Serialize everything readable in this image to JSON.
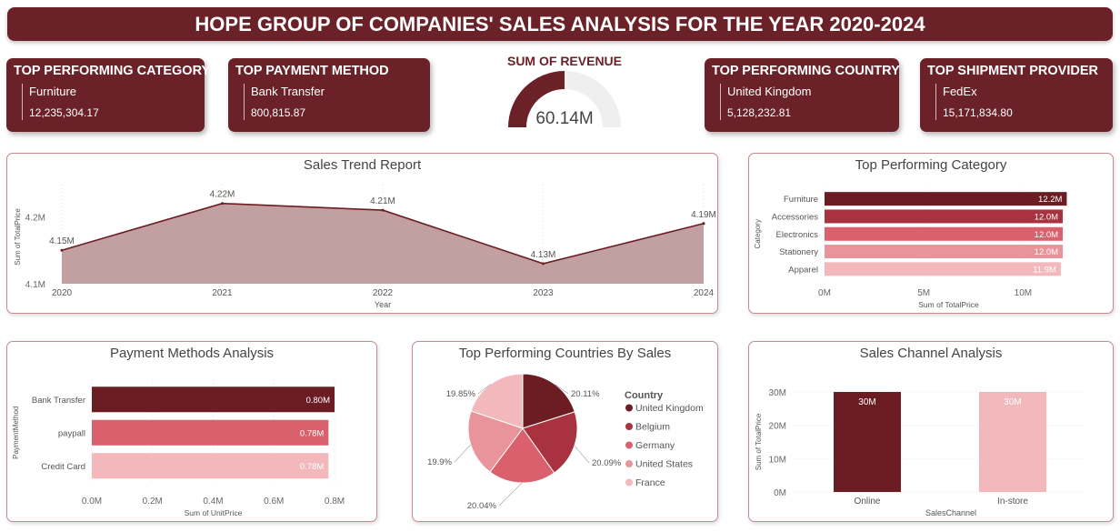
{
  "header": {
    "title": "HOPE GROUP OF COMPANIES' SALES ANALYSIS FOR THE YEAR 2020-2024"
  },
  "kpis": [
    {
      "title": "TOP PERFORMING CATEGORY",
      "name": "Furniture",
      "value": "12,235,304.17"
    },
    {
      "title": "TOP PAYMENT METHOD",
      "name": "Bank Transfer",
      "value": "800,815.87"
    },
    {
      "title": "TOP PERFORMING COUNTRY",
      "name": "United Kingdom",
      "value": "5,128,232.81"
    },
    {
      "title": "TOP SHIPMENT PROVIDER",
      "name": "FedEx",
      "value": "15,171,834.80"
    }
  ],
  "revenue_gauge": {
    "title": "SUM OF REVENUE",
    "label": "60.14M",
    "fraction": 0.5
  },
  "colors": {
    "maroon": "#6b2128",
    "dark": "#6b1d23",
    "red": "#a8323f",
    "rose": "#d9606c",
    "pink": "#e8949a",
    "light": "#f2b8bc",
    "area": "#c2a0a2"
  },
  "chart_data": [
    {
      "id": "trend",
      "type": "area",
      "title": "Sales Trend Report",
      "xlabel": "Year",
      "ylabel": "Sum of TotalPrice",
      "x": [
        "2020",
        "2021",
        "2022",
        "2023",
        "2024"
      ],
      "values": [
        4.15,
        4.22,
        4.21,
        4.13,
        4.19
      ],
      "data_labels": [
        "4.15M",
        "4.22M",
        "4.21M",
        "4.13M",
        "4.19M"
      ],
      "ylim": [
        4.1,
        4.24
      ],
      "yticks": [
        {
          "v": 4.1,
          "label": "4.1M"
        },
        {
          "v": 4.2,
          "label": "4.2M"
        }
      ]
    },
    {
      "id": "category",
      "type": "bar",
      "orientation": "horizontal",
      "title": "Top Performing Category",
      "xlabel": "Sum of TotalPrice",
      "ylabel": "Category",
      "categories": [
        "Furniture",
        "Accessories",
        "Electronics",
        "Stationery",
        "Apparel"
      ],
      "values": [
        12.2,
        12.0,
        12.0,
        12.0,
        11.9
      ],
      "data_labels": [
        "12.2M",
        "12.0M",
        "12.0M",
        "12.0M",
        "11.9M"
      ],
      "xlim": [
        0,
        12.5
      ],
      "xticks": [
        {
          "v": 0,
          "label": "0M"
        },
        {
          "v": 5,
          "label": "5M"
        },
        {
          "v": 10,
          "label": "10M"
        }
      ]
    },
    {
      "id": "payment",
      "type": "bar",
      "orientation": "horizontal",
      "title": "Payment Methods Analysis",
      "xlabel": "Sum of UnitPrice",
      "ylabel": "PaymentMethod",
      "categories": [
        "Bank Transfer",
        "paypall",
        "Credit Card"
      ],
      "values": [
        0.8,
        0.78,
        0.78
      ],
      "data_labels": [
        "0.80M",
        "0.78M",
        "0.78M"
      ],
      "xlim": [
        0,
        0.8
      ],
      "xticks": [
        {
          "v": 0,
          "label": "0.0M"
        },
        {
          "v": 0.2,
          "label": "0.2M"
        },
        {
          "v": 0.4,
          "label": "0.4M"
        },
        {
          "v": 0.6,
          "label": "0.6M"
        },
        {
          "v": 0.8,
          "label": "0.8M"
        }
      ]
    },
    {
      "id": "countries",
      "type": "pie",
      "title": "Top Performing Countries By Sales",
      "legend_title": "Country",
      "legend_position": "right",
      "labels": [
        "United Kingdom",
        "Belgium",
        "Germany",
        "United States",
        "France"
      ],
      "values": [
        20.11,
        20.09,
        20.04,
        19.9,
        19.85
      ],
      "data_labels": [
        "20.11%",
        "20.09%",
        "20.04%",
        "19.9%",
        "19.85%"
      ]
    },
    {
      "id": "channel",
      "type": "bar",
      "orientation": "vertical",
      "title": "Sales Channel Analysis",
      "xlabel": "SalesChannel",
      "ylabel": "Sum of TotalPrice",
      "categories": [
        "Online",
        "In-store"
      ],
      "values": [
        30,
        30
      ],
      "data_labels": [
        "30M",
        "30M"
      ],
      "ylim": [
        0,
        30
      ],
      "yticks": [
        {
          "v": 0,
          "label": "0M"
        },
        {
          "v": 10,
          "label": "10M"
        },
        {
          "v": 20,
          "label": "20M"
        },
        {
          "v": 30,
          "label": "30M"
        }
      ]
    }
  ]
}
